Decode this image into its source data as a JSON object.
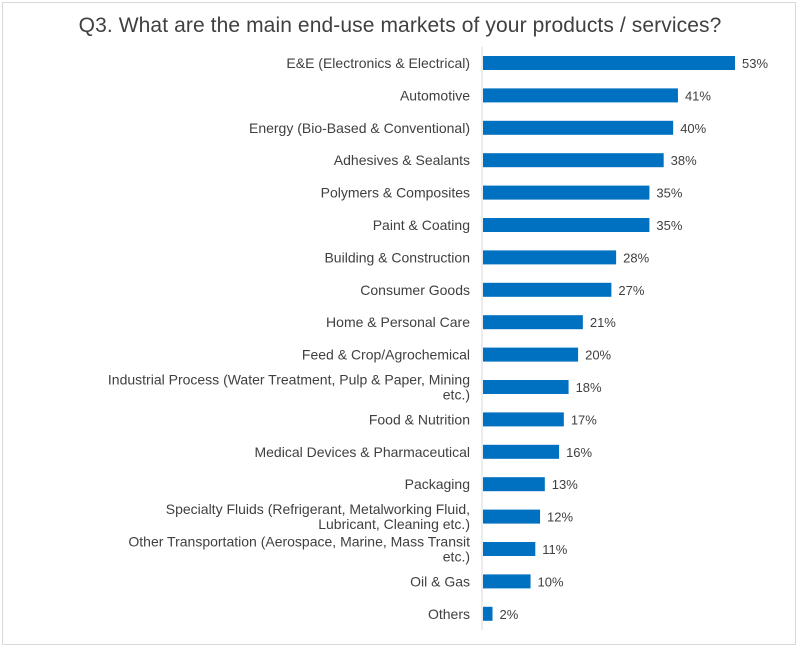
{
  "chart_data": {
    "type": "bar",
    "orientation": "horizontal",
    "title": "Q3. What are the main end-use markets of your products / services?",
    "categories": [
      "E&E (Electronics & Electrical)",
      "Automotive",
      "Energy (Bio-Based & Conventional)",
      "Adhesives & Sealants",
      "Polymers & Composites",
      "Paint & Coating",
      "Building & Construction",
      "Consumer Goods",
      "Home & Personal Care",
      "Feed & Crop/Agrochemical",
      "Industrial Process (Water Treatment, Pulp & Paper, Mining etc.)",
      "Food & Nutrition",
      "Medical Devices & Pharmaceutical",
      "Packaging",
      "Specialty Fluids (Refrigerant, Metalworking Fluid, Lubricant, Cleaning etc.)",
      "Other Transportation (Aerospace, Marine, Mass Transit etc.)",
      "Oil & Gas",
      "Others"
    ],
    "category_lines": [
      [
        "E&E (Electronics & Electrical)"
      ],
      [
        "Automotive"
      ],
      [
        "Energy (Bio-Based & Conventional)"
      ],
      [
        "Adhesives & Sealants"
      ],
      [
        "Polymers & Composites"
      ],
      [
        "Paint & Coating"
      ],
      [
        "Building & Construction"
      ],
      [
        "Consumer Goods"
      ],
      [
        "Home & Personal Care"
      ],
      [
        "Feed & Crop/Agrochemical"
      ],
      [
        "Industrial Process (Water Treatment, Pulp & Paper, Mining",
        "etc.)"
      ],
      [
        "Food & Nutrition"
      ],
      [
        "Medical Devices & Pharmaceutical"
      ],
      [
        "Packaging"
      ],
      [
        "Specialty Fluids (Refrigerant, Metalworking Fluid,",
        "Lubricant, Cleaning etc.)"
      ],
      [
        "Other Transportation (Aerospace, Marine, Mass Transit",
        "etc.)"
      ],
      [
        "Oil & Gas"
      ],
      [
        "Others"
      ]
    ],
    "values": [
      53,
      41,
      40,
      38,
      35,
      35,
      28,
      27,
      21,
      20,
      18,
      17,
      16,
      13,
      12,
      11,
      10,
      2
    ],
    "value_labels": [
      "53%",
      "41%",
      "40%",
      "38%",
      "35%",
      "35%",
      "28%",
      "27%",
      "21%",
      "20%",
      "18%",
      "17%",
      "16%",
      "13%",
      "12%",
      "11%",
      "10%",
      "2%"
    ],
    "xlim": [
      0,
      53
    ],
    "bar_color": "#0070c0",
    "axis_color": "#d9d9d9",
    "grid": false,
    "legend": "none"
  }
}
